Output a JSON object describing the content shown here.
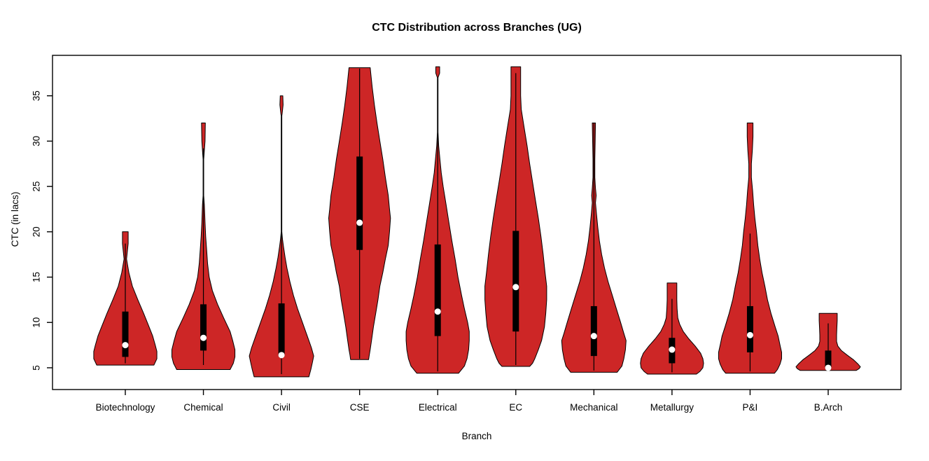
{
  "chart_data": {
    "type": "violin",
    "title": "CTC Distribution across Branches (UG)",
    "xlabel": "Branch",
    "ylabel": "CTC (in lacs)",
    "ylim": [
      2.6,
      39.46
    ],
    "yticks": [
      5,
      10,
      15,
      20,
      25,
      30,
      35
    ],
    "grid": false,
    "legend": "none",
    "categories": [
      "Biotechnology",
      "Chemical",
      "Civil",
      "CSE",
      "Electrical",
      "EC",
      "Mechanical",
      "Metallurgy",
      "P&I",
      "B.Arch"
    ],
    "colors": {
      "violin_fill": "#CD2626",
      "outline": "#000000",
      "iqr_box": "#000000",
      "median_dot": "#FFFFFF",
      "background": "#FFFFFF",
      "text": "#000000"
    },
    "violins": [
      {
        "branch": "Biotechnology",
        "min": 5.3,
        "max": 20.0,
        "median": 7.5,
        "q1": 6.2,
        "q3": 11.2,
        "whisker_low": 5.5,
        "whisker_high": 18.7,
        "profile": [
          [
            20.0,
            0.09
          ],
          [
            18.7,
            0.09
          ],
          [
            17.0,
            0.04
          ],
          [
            15.5,
            0.11
          ],
          [
            14.0,
            0.22
          ],
          [
            12.5,
            0.39
          ],
          [
            11.0,
            0.57
          ],
          [
            9.5,
            0.74
          ],
          [
            8.5,
            0.85
          ],
          [
            7.5,
            0.93
          ],
          [
            6.8,
            0.98
          ],
          [
            6.0,
            0.98
          ],
          [
            5.3,
            0.89
          ]
        ]
      },
      {
        "branch": "Chemical",
        "min": 4.8,
        "max": 32.0,
        "median": 8.3,
        "q1": 6.9,
        "q3": 12.0,
        "whisker_low": 5.3,
        "whisker_high": 29.2,
        "profile": [
          [
            32.0,
            0.06
          ],
          [
            30.0,
            0.05
          ],
          [
            28.5,
            0.02
          ],
          [
            28.0,
            0.01
          ],
          [
            26.0,
            0.01
          ],
          [
            24.0,
            0.01
          ],
          [
            23.0,
            0.03
          ],
          [
            21.0,
            0.05
          ],
          [
            19.5,
            0.07
          ],
          [
            18.0,
            0.1
          ],
          [
            16.5,
            0.13
          ],
          [
            15.0,
            0.18
          ],
          [
            13.5,
            0.28
          ],
          [
            12.0,
            0.44
          ],
          [
            10.5,
            0.63
          ],
          [
            9.0,
            0.83
          ],
          [
            8.0,
            0.91
          ],
          [
            7.0,
            0.98
          ],
          [
            6.2,
            0.98
          ],
          [
            5.5,
            0.93
          ],
          [
            4.8,
            0.83
          ]
        ]
      },
      {
        "branch": "Civil",
        "min": 4.0,
        "max": 35.0,
        "median": 6.4,
        "q1": 6.3,
        "q3": 12.1,
        "whisker_low": 4.3,
        "whisker_high": 32.9,
        "profile": [
          [
            35.0,
            0.04
          ],
          [
            34.0,
            0.05
          ],
          [
            33.0,
            0.02
          ],
          [
            32.8,
            0.01
          ],
          [
            28.0,
            0.01
          ],
          [
            24.0,
            0.01
          ],
          [
            20.0,
            0.01
          ],
          [
            19.2,
            0.03
          ],
          [
            18.4,
            0.06
          ],
          [
            17.2,
            0.11
          ],
          [
            16.0,
            0.17
          ],
          [
            14.5,
            0.26
          ],
          [
            13.0,
            0.37
          ],
          [
            11.5,
            0.5
          ],
          [
            10.0,
            0.65
          ],
          [
            8.5,
            0.8
          ],
          [
            7.2,
            0.93
          ],
          [
            6.3,
            1.0
          ],
          [
            5.6,
            0.96
          ],
          [
            4.8,
            0.91
          ],
          [
            4.0,
            0.85
          ]
        ]
      },
      {
        "branch": "CSE",
        "min": 5.9,
        "max": 38.1,
        "median": 21.0,
        "q1": 18.0,
        "q3": 28.3,
        "whisker_low": 6.0,
        "whisker_high": 38.0,
        "profile": [
          [
            38.1,
            0.33
          ],
          [
            36.0,
            0.39
          ],
          [
            34.0,
            0.46
          ],
          [
            32.0,
            0.54
          ],
          [
            30.0,
            0.63
          ],
          [
            28.0,
            0.72
          ],
          [
            26.0,
            0.8
          ],
          [
            24.0,
            0.89
          ],
          [
            22.5,
            0.93
          ],
          [
            21.5,
            0.96
          ],
          [
            20.0,
            0.93
          ],
          [
            18.5,
            0.89
          ],
          [
            17.0,
            0.8
          ],
          [
            15.5,
            0.72
          ],
          [
            14.0,
            0.63
          ],
          [
            12.5,
            0.57
          ],
          [
            11.0,
            0.5
          ],
          [
            9.5,
            0.43
          ],
          [
            8.0,
            0.37
          ],
          [
            7.0,
            0.33
          ],
          [
            6.4,
            0.3
          ],
          [
            5.9,
            0.28
          ]
        ]
      },
      {
        "branch": "Electrical",
        "min": 4.4,
        "max": 38.2,
        "median": 11.2,
        "q1": 8.5,
        "q3": 18.6,
        "whisker_low": 4.6,
        "whisker_high": 37.0,
        "profile": [
          [
            38.2,
            0.06
          ],
          [
            37.5,
            0.06
          ],
          [
            37.0,
            0.01
          ],
          [
            34.0,
            0.01
          ],
          [
            31.0,
            0.01
          ],
          [
            29.5,
            0.03
          ],
          [
            28.0,
            0.07
          ],
          [
            26.5,
            0.11
          ],
          [
            25.0,
            0.17
          ],
          [
            23.0,
            0.26
          ],
          [
            21.0,
            0.35
          ],
          [
            19.0,
            0.44
          ],
          [
            17.0,
            0.54
          ],
          [
            15.0,
            0.63
          ],
          [
            13.0,
            0.74
          ],
          [
            11.5,
            0.83
          ],
          [
            10.0,
            0.93
          ],
          [
            9.0,
            0.98
          ],
          [
            8.0,
            0.98
          ],
          [
            7.0,
            0.96
          ],
          [
            6.0,
            0.91
          ],
          [
            5.2,
            0.83
          ],
          [
            4.4,
            0.65
          ]
        ]
      },
      {
        "branch": "EC",
        "min": 5.15,
        "max": 38.2,
        "median": 13.9,
        "q1": 9.0,
        "q3": 20.1,
        "whisker_low": 5.3,
        "whisker_high": 37.5,
        "profile": [
          [
            38.2,
            0.15
          ],
          [
            36.5,
            0.15
          ],
          [
            35.0,
            0.15
          ],
          [
            33.5,
            0.17
          ],
          [
            31.5,
            0.26
          ],
          [
            29.5,
            0.35
          ],
          [
            27.5,
            0.43
          ],
          [
            25.5,
            0.52
          ],
          [
            23.5,
            0.61
          ],
          [
            21.5,
            0.7
          ],
          [
            19.5,
            0.78
          ],
          [
            17.5,
            0.85
          ],
          [
            15.5,
            0.91
          ],
          [
            14.0,
            0.96
          ],
          [
            12.5,
            0.96
          ],
          [
            11.0,
            0.93
          ],
          [
            9.5,
            0.89
          ],
          [
            8.0,
            0.8
          ],
          [
            7.0,
            0.7
          ],
          [
            6.0,
            0.59
          ],
          [
            5.5,
            0.52
          ],
          [
            5.15,
            0.43
          ]
        ]
      },
      {
        "branch": "Mechanical",
        "min": 4.5,
        "max": 32.0,
        "median": 8.5,
        "q1": 6.3,
        "q3": 11.8,
        "whisker_low": 4.7,
        "whisker_high": 32.0,
        "profile": [
          [
            32.0,
            0.05
          ],
          [
            30.0,
            0.04
          ],
          [
            28.0,
            0.03
          ],
          [
            26.0,
            0.03
          ],
          [
            24.8,
            0.05
          ],
          [
            24.0,
            0.07
          ],
          [
            23.2,
            0.05
          ],
          [
            22.0,
            0.08
          ],
          [
            20.5,
            0.12
          ],
          [
            19.0,
            0.17
          ],
          [
            17.5,
            0.24
          ],
          [
            16.0,
            0.33
          ],
          [
            14.5,
            0.44
          ],
          [
            13.0,
            0.57
          ],
          [
            11.5,
            0.7
          ],
          [
            10.0,
            0.83
          ],
          [
            8.8,
            0.93
          ],
          [
            8.0,
            1.0
          ],
          [
            7.0,
            0.98
          ],
          [
            6.0,
            0.93
          ],
          [
            5.2,
            0.87
          ],
          [
            4.5,
            0.72
          ]
        ]
      },
      {
        "branch": "Metallurgy",
        "min": 4.3,
        "max": 14.35,
        "median": 7.0,
        "q1": 5.5,
        "q3": 8.3,
        "whisker_low": 4.5,
        "whisker_high": 12.6,
        "profile": [
          [
            14.35,
            0.15
          ],
          [
            13.5,
            0.15
          ],
          [
            12.5,
            0.15
          ],
          [
            11.5,
            0.16
          ],
          [
            10.5,
            0.18
          ],
          [
            9.8,
            0.24
          ],
          [
            9.0,
            0.35
          ],
          [
            8.2,
            0.52
          ],
          [
            7.4,
            0.72
          ],
          [
            6.6,
            0.89
          ],
          [
            6.0,
            0.96
          ],
          [
            5.5,
            0.98
          ],
          [
            5.0,
            0.96
          ],
          [
            4.6,
            0.87
          ],
          [
            4.3,
            0.76
          ]
        ]
      },
      {
        "branch": "P&I",
        "min": 4.4,
        "max": 32.0,
        "median": 8.6,
        "q1": 6.7,
        "q3": 11.8,
        "whisker_low": 4.6,
        "whisker_high": 19.8,
        "profile": [
          [
            32.0,
            0.09
          ],
          [
            30.5,
            0.09
          ],
          [
            29.0,
            0.07
          ],
          [
            27.5,
            0.04
          ],
          [
            26.0,
            0.04
          ],
          [
            24.5,
            0.08
          ],
          [
            23.0,
            0.11
          ],
          [
            21.5,
            0.15
          ],
          [
            20.0,
            0.2
          ],
          [
            18.5,
            0.24
          ],
          [
            17.0,
            0.3
          ],
          [
            15.5,
            0.37
          ],
          [
            14.0,
            0.46
          ],
          [
            12.5,
            0.54
          ],
          [
            11.0,
            0.65
          ],
          [
            9.5,
            0.78
          ],
          [
            8.5,
            0.87
          ],
          [
            7.5,
            0.93
          ],
          [
            6.7,
            0.98
          ],
          [
            6.0,
            0.98
          ],
          [
            5.4,
            0.93
          ],
          [
            4.8,
            0.85
          ],
          [
            4.4,
            0.76
          ]
        ]
      },
      {
        "branch": "B.Arch",
        "min": 4.7,
        "max": 11.0,
        "median": 5.0,
        "q1": 4.85,
        "q3": 6.9,
        "whisker_low": 4.8,
        "whisker_high": 9.9,
        "profile": [
          [
            11.0,
            0.28
          ],
          [
            10.2,
            0.28
          ],
          [
            9.4,
            0.27
          ],
          [
            8.6,
            0.26
          ],
          [
            7.9,
            0.26
          ],
          [
            7.4,
            0.3
          ],
          [
            6.9,
            0.41
          ],
          [
            6.4,
            0.59
          ],
          [
            5.9,
            0.78
          ],
          [
            5.4,
            0.93
          ],
          [
            5.1,
            1.0
          ],
          [
            4.9,
            0.96
          ],
          [
            4.7,
            0.87
          ]
        ]
      }
    ]
  }
}
